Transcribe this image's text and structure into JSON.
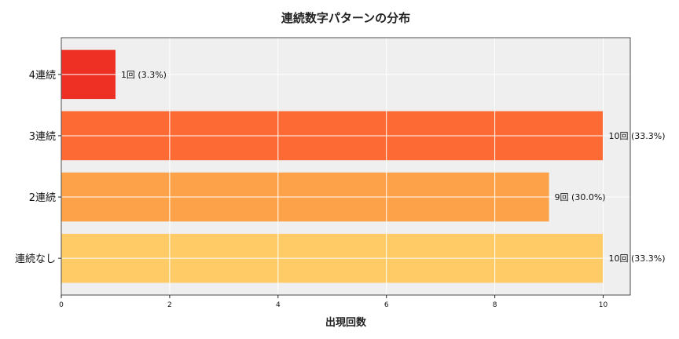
{
  "chart_data": {
    "type": "bar",
    "orientation": "horizontal",
    "title": "連続数字パターンの分布",
    "xlabel": "出現回数",
    "ylabel": "",
    "categories": [
      "連続なし",
      "2連続",
      "3連続",
      "4連続"
    ],
    "values": [
      10,
      9,
      10,
      1
    ],
    "data_labels": [
      "10回 (33.3%)",
      "9回 (30.0%)",
      "10回 (33.3%)",
      "1回 (3.3%)"
    ],
    "colors": [
      "#fecb67",
      "#fda248",
      "#fe6a33",
      "#ee3024"
    ],
    "xlim": [
      0,
      10.5
    ],
    "xticks": [
      0,
      2,
      4,
      6,
      8,
      10
    ],
    "grid": true,
    "background": "#efefef"
  }
}
